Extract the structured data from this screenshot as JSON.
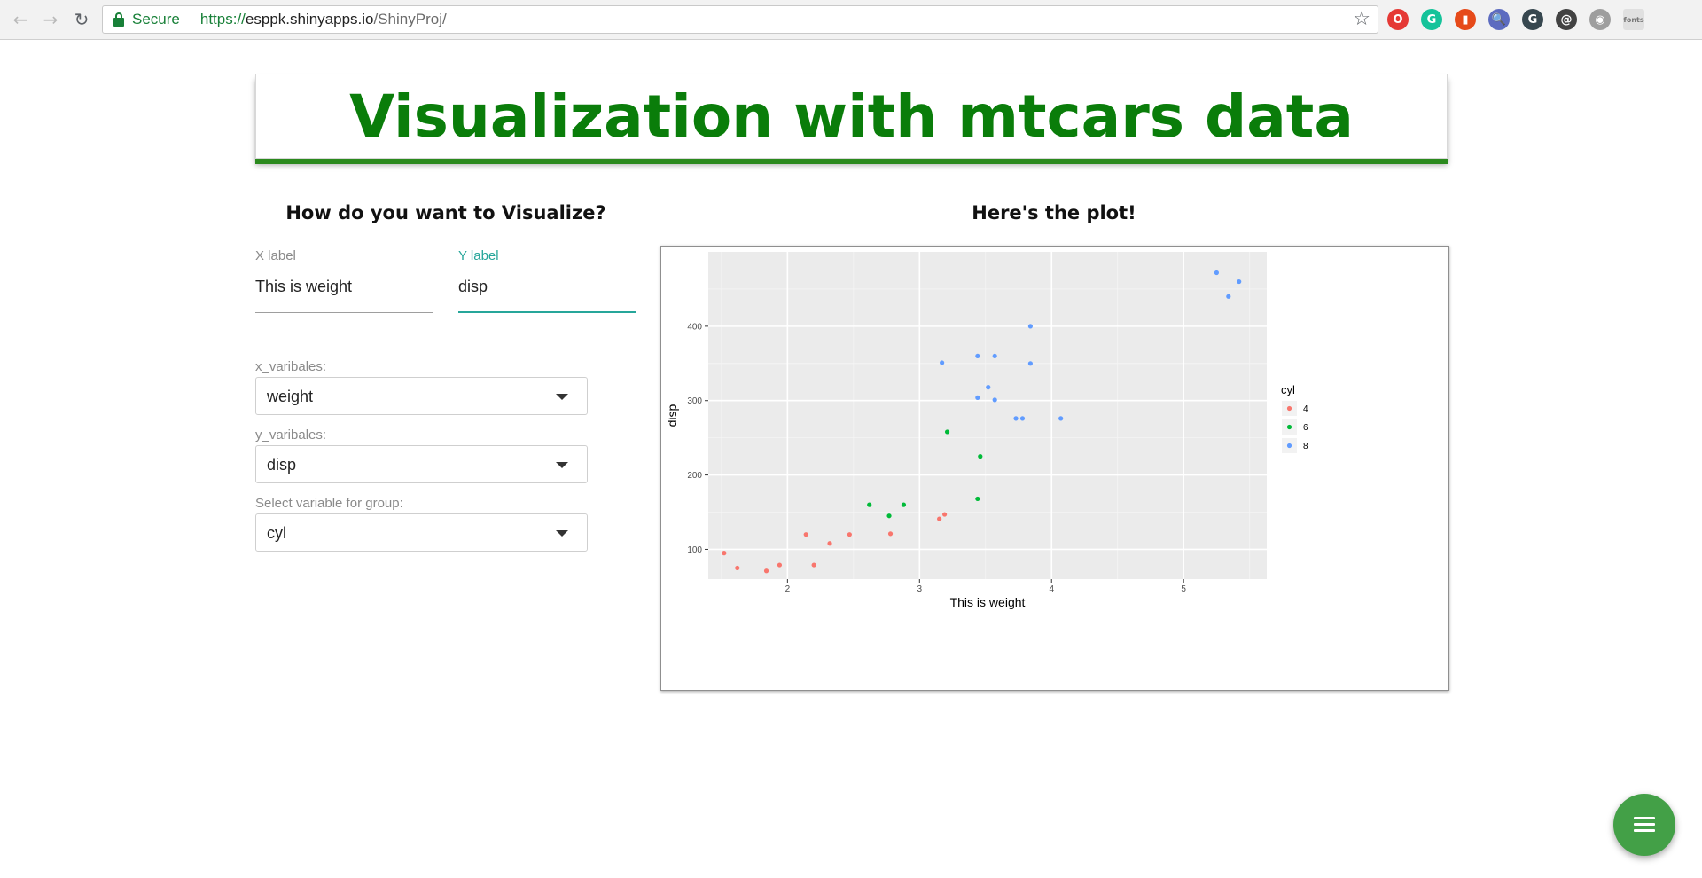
{
  "browser": {
    "secure_label": "Secure",
    "url_prefix": "https://",
    "url_host": "esppk.shinyapps.io",
    "url_path": "/ShinyProj/",
    "extensions": [
      {
        "icon": "opera-icon",
        "color": "#e53935",
        "glyph": "O"
      },
      {
        "icon": "grammarly-icon",
        "color": "#15c39a",
        "glyph": "G"
      },
      {
        "icon": "office-icon",
        "color": "#e64a19",
        "glyph": "▮"
      },
      {
        "icon": "spy-icon",
        "color": "#5c6bc0",
        "glyph": "🔍"
      },
      {
        "icon": "ghostery-icon",
        "color": "#37474f",
        "glyph": "G"
      },
      {
        "icon": "swirl-icon",
        "color": "#424242",
        "glyph": "@"
      },
      {
        "icon": "camera-icon",
        "color": "#9e9e9e",
        "glyph": "◉"
      },
      {
        "icon": "fonts-icon",
        "color": "#e0e0e0",
        "glyph": "fonts"
      }
    ]
  },
  "page": {
    "title": "Visualization with mtcars data",
    "left_heading": "How do you want to Visualize?",
    "right_heading": "Here's the plot!"
  },
  "inputs": {
    "x_label": {
      "label": "X label",
      "value": "This is weight"
    },
    "y_label": {
      "label": "Y label",
      "value": "disp"
    },
    "x_var": {
      "label": "x_varibales:",
      "value": "weight"
    },
    "y_var": {
      "label": "y_varibales:",
      "value": "disp"
    },
    "group_var": {
      "label": "Select variable for group:",
      "value": "cyl"
    }
  },
  "chart_data": {
    "type": "scatter",
    "xlabel": "This is weight",
    "ylabel": "disp",
    "xlim": [
      1.4,
      5.63
    ],
    "ylim": [
      60,
      500
    ],
    "x_ticks": [
      2,
      3,
      4,
      5
    ],
    "y_ticks": [
      100,
      200,
      300,
      400
    ],
    "grid": true,
    "legend_title": "cyl",
    "legend_position": "right",
    "series": [
      {
        "name": "4",
        "color": "#f8766d",
        "points": [
          [
            1.52,
            95
          ],
          [
            1.62,
            75
          ],
          [
            1.84,
            71
          ],
          [
            1.94,
            79
          ],
          [
            2.14,
            120
          ],
          [
            2.2,
            79
          ],
          [
            2.32,
            108
          ],
          [
            2.47,
            120
          ],
          [
            2.78,
            121
          ],
          [
            3.15,
            141
          ],
          [
            3.19,
            147
          ]
        ]
      },
      {
        "name": "6",
        "color": "#00ba38",
        "points": [
          [
            2.62,
            160
          ],
          [
            2.77,
            145
          ],
          [
            2.88,
            160
          ],
          [
            3.21,
            258
          ],
          [
            3.44,
            168
          ],
          [
            3.46,
            225
          ]
        ]
      },
      {
        "name": "8",
        "color": "#619cff",
        "points": [
          [
            3.17,
            351
          ],
          [
            3.44,
            304
          ],
          [
            3.44,
            360
          ],
          [
            3.52,
            318
          ],
          [
            3.57,
            360
          ],
          [
            3.57,
            301
          ],
          [
            3.73,
            276
          ],
          [
            3.78,
            276
          ],
          [
            3.84,
            400
          ],
          [
            3.84,
            350
          ],
          [
            4.07,
            276
          ],
          [
            5.25,
            472
          ],
          [
            5.34,
            440
          ],
          [
            5.42,
            460
          ]
        ]
      }
    ]
  }
}
